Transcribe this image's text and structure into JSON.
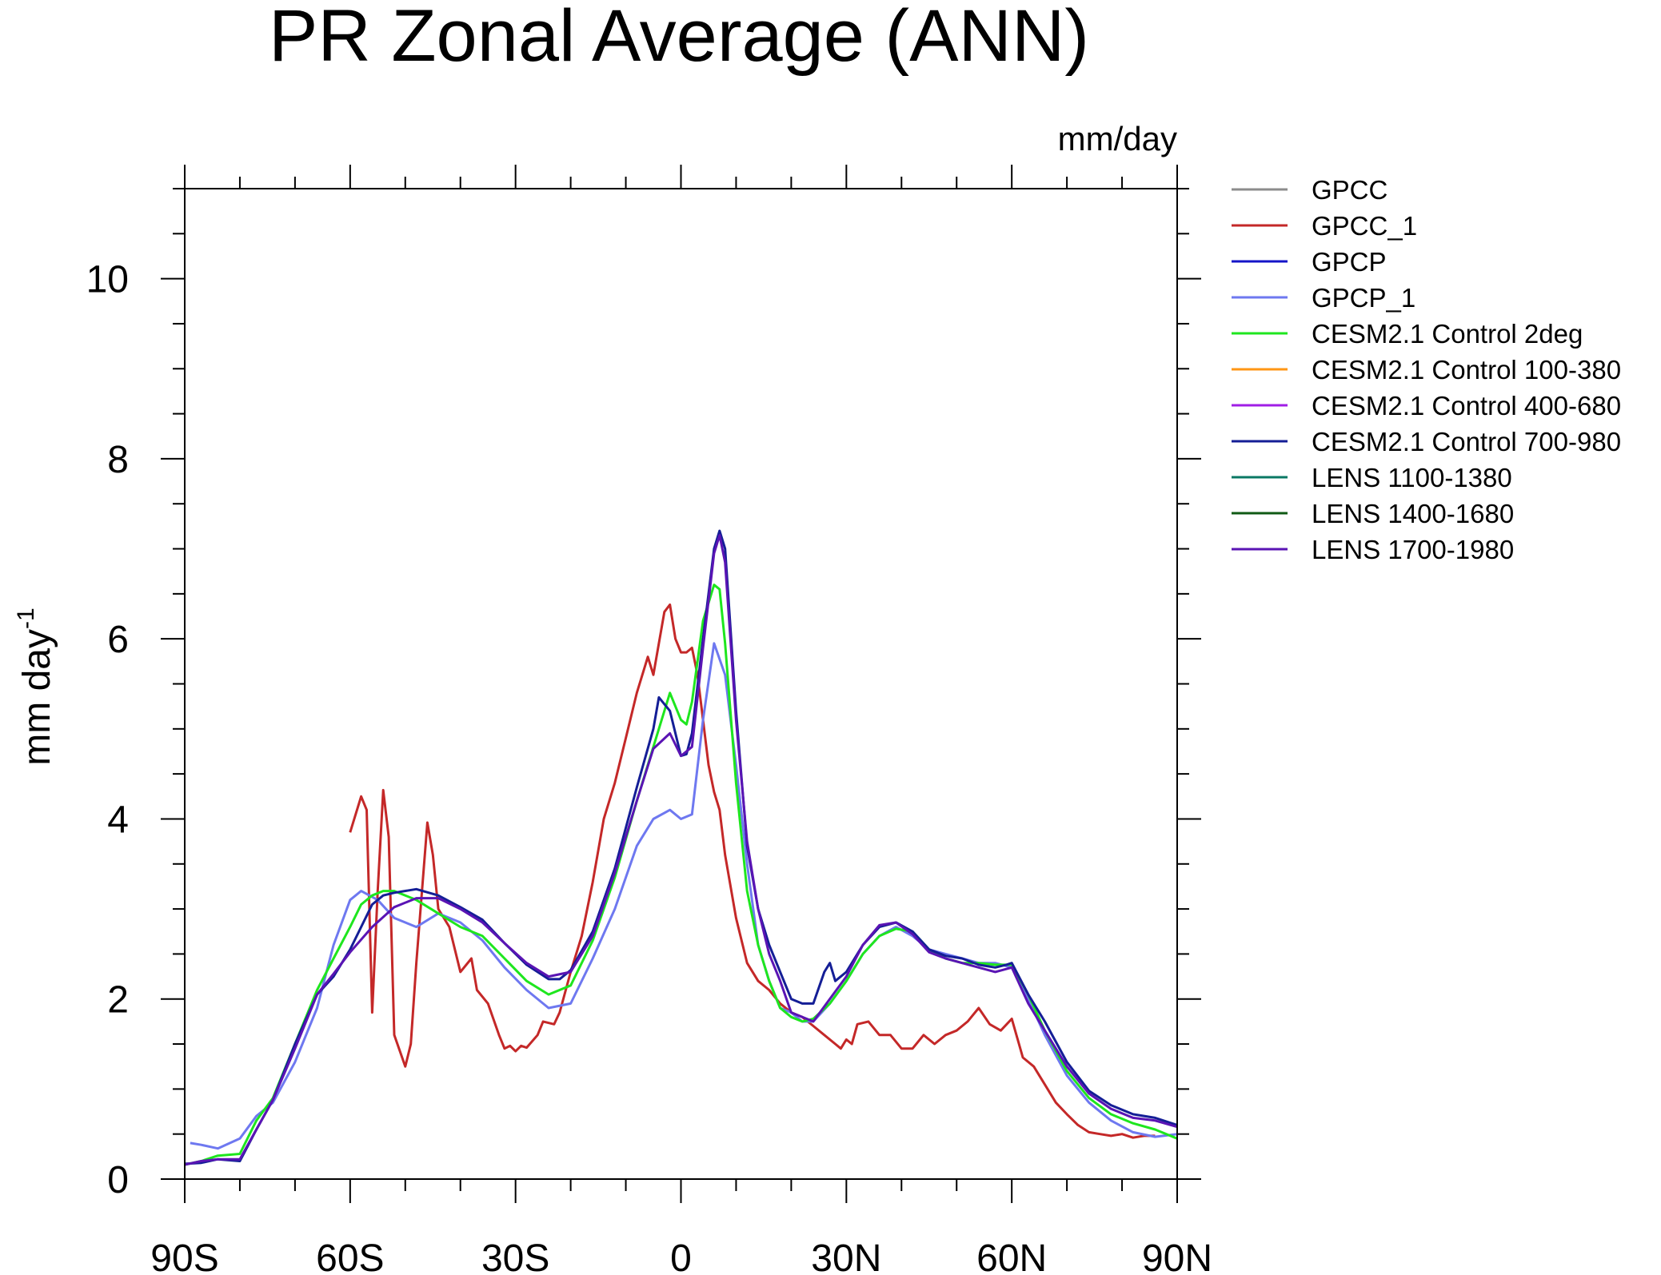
{
  "chart_data": {
    "type": "line",
    "title": "PR Zonal Average (ANN)",
    "units": "mm/day",
    "ylabel": "mm day",
    "ylabel_superscript": "-1",
    "xlabel": "",
    "xlim": [
      -90,
      90
    ],
    "ylim": [
      0,
      11
    ],
    "xticks": [
      {
        "value": -90,
        "label": "90S"
      },
      {
        "value": -60,
        "label": "60S"
      },
      {
        "value": -30,
        "label": "30S"
      },
      {
        "value": 0,
        "label": "0"
      },
      {
        "value": 30,
        "label": "30N"
      },
      {
        "value": 60,
        "label": "60N"
      },
      {
        "value": 90,
        "label": "90N"
      }
    ],
    "yticks": [
      {
        "value": 0,
        "label": "0"
      },
      {
        "value": 2,
        "label": "2"
      },
      {
        "value": 4,
        "label": "4"
      },
      {
        "value": 6,
        "label": "6"
      },
      {
        "value": 8,
        "label": "8"
      },
      {
        "value": 10,
        "label": "10"
      }
    ],
    "legend_position": "right",
    "series": [
      {
        "name": "GPCC",
        "color": "#8c8c8c",
        "width": 3,
        "x": [],
        "y": []
      },
      {
        "name": "GPCC_1",
        "color": "#c42828",
        "width": 3,
        "x": [
          -60,
          -58,
          -57,
          -56,
          -55,
          -54,
          -53,
          -52,
          -50,
          -49,
          -48,
          -46,
          -45,
          -44,
          -42,
          -40,
          -38,
          -37,
          -35,
          -33,
          -32,
          -31,
          -30,
          -29,
          -28,
          -26,
          -25,
          -23,
          -22,
          -20,
          -18,
          -16,
          -14,
          -12,
          -10,
          -8,
          -6,
          -5,
          -4,
          -3,
          -2,
          -1,
          0,
          1,
          2,
          3,
          4,
          5,
          6,
          7,
          8,
          10,
          12,
          14,
          16,
          18,
          20,
          22,
          24,
          26,
          28,
          29,
          30,
          31,
          32,
          34,
          36,
          38,
          40,
          42,
          44,
          46,
          48,
          50,
          52,
          54,
          56,
          58,
          60,
          62,
          64,
          66,
          68,
          70,
          72,
          74,
          76,
          78,
          80,
          82,
          84,
          86
        ],
        "y": [
          3.85,
          4.25,
          4.1,
          1.85,
          3.2,
          4.32,
          3.8,
          1.6,
          1.25,
          1.5,
          2.4,
          3.96,
          3.6,
          3.0,
          2.8,
          2.3,
          2.45,
          2.1,
          1.95,
          1.6,
          1.45,
          1.48,
          1.42,
          1.48,
          1.46,
          1.6,
          1.75,
          1.72,
          1.85,
          2.3,
          2.7,
          3.3,
          4.0,
          4.4,
          4.9,
          5.4,
          5.8,
          5.6,
          5.95,
          6.3,
          6.38,
          6.0,
          5.85,
          5.85,
          5.9,
          5.6,
          5.1,
          4.6,
          4.3,
          4.1,
          3.6,
          2.9,
          2.4,
          2.2,
          2.1,
          1.95,
          1.85,
          1.8,
          1.7,
          1.6,
          1.5,
          1.45,
          1.55,
          1.5,
          1.72,
          1.75,
          1.6,
          1.6,
          1.45,
          1.45,
          1.6,
          1.5,
          1.6,
          1.65,
          1.75,
          1.9,
          1.72,
          1.65,
          1.78,
          1.35,
          1.25,
          1.05,
          0.85,
          0.72,
          0.6,
          0.52,
          0.5,
          0.48,
          0.5,
          0.46,
          0.48,
          0.48
        ]
      },
      {
        "name": "GPCP",
        "color": "#1414c8",
        "width": 3,
        "x": [],
        "y": []
      },
      {
        "name": "GPCP_1",
        "color": "#6e78f0",
        "width": 3,
        "x": [
          -89,
          -87,
          -84,
          -80,
          -77,
          -74,
          -70,
          -66,
          -63,
          -60,
          -58,
          -55,
          -52,
          -48,
          -44,
          -40,
          -36,
          -32,
          -28,
          -24,
          -20,
          -16,
          -12,
          -8,
          -5,
          -2,
          0,
          2,
          4,
          6,
          8,
          10,
          12,
          14,
          16,
          18,
          20,
          22,
          24,
          27,
          30,
          33,
          36,
          39,
          42,
          45,
          48,
          51,
          54,
          57,
          60,
          63,
          66,
          70,
          74,
          78,
          82,
          86,
          90
        ],
        "y": [
          0.4,
          0.38,
          0.34,
          0.45,
          0.7,
          0.85,
          1.3,
          1.9,
          2.6,
          3.1,
          3.2,
          3.1,
          2.9,
          2.8,
          2.95,
          2.85,
          2.65,
          2.35,
          2.1,
          1.9,
          1.95,
          2.45,
          3.0,
          3.7,
          4.0,
          4.1,
          4.0,
          4.05,
          5.1,
          5.95,
          5.6,
          4.6,
          3.5,
          2.6,
          2.2,
          1.9,
          1.85,
          1.75,
          1.75,
          1.95,
          2.2,
          2.5,
          2.7,
          2.8,
          2.7,
          2.55,
          2.5,
          2.45,
          2.4,
          2.4,
          2.35,
          2.0,
          1.6,
          1.15,
          0.85,
          0.65,
          0.52,
          0.47,
          0.5
        ]
      },
      {
        "name": "CESM2.1 Control 2deg",
        "color": "#1ee61e",
        "width": 3,
        "x": [
          -90,
          -87,
          -84,
          -80,
          -77,
          -74,
          -70,
          -66,
          -63,
          -60,
          -58,
          -56,
          -54,
          -52,
          -48,
          -44,
          -40,
          -36,
          -32,
          -28,
          -24,
          -20,
          -16,
          -12,
          -8,
          -5,
          -2,
          0,
          1,
          2,
          4,
          6,
          7,
          8,
          10,
          12,
          14,
          16,
          18,
          20,
          22,
          24,
          27,
          30,
          33,
          36,
          39,
          42,
          45,
          48,
          51,
          54,
          57,
          60,
          63,
          66,
          70,
          74,
          78,
          82,
          86,
          90
        ],
        "y": [
          0.16,
          0.2,
          0.26,
          0.28,
          0.65,
          0.9,
          1.5,
          2.1,
          2.45,
          2.8,
          3.05,
          3.15,
          3.2,
          3.2,
          3.1,
          2.95,
          2.8,
          2.7,
          2.45,
          2.2,
          2.05,
          2.15,
          2.65,
          3.35,
          4.2,
          4.8,
          5.4,
          5.1,
          5.05,
          5.3,
          6.2,
          6.6,
          6.55,
          5.95,
          4.4,
          3.2,
          2.6,
          2.2,
          1.9,
          1.8,
          1.75,
          1.78,
          1.95,
          2.2,
          2.5,
          2.7,
          2.78,
          2.75,
          2.55,
          2.45,
          2.4,
          2.4,
          2.38,
          2.38,
          2.05,
          1.65,
          1.2,
          0.9,
          0.72,
          0.62,
          0.55,
          0.45
        ]
      },
      {
        "name": "CESM2.1 Control 100-380",
        "color": "#ff9614",
        "width": 3,
        "x": [],
        "y": []
      },
      {
        "name": "CESM2.1 Control 400-680",
        "color": "#a01ee6",
        "width": 3,
        "x": [],
        "y": []
      },
      {
        "name": "CESM2.1 Control 700-980",
        "color": "#141e96",
        "width": 3,
        "x": [
          -90,
          -87,
          -84,
          -80,
          -77,
          -74,
          -70,
          -66,
          -63,
          -60,
          -58,
          -56,
          -54,
          -52,
          -48,
          -44,
          -40,
          -36,
          -32,
          -28,
          -24,
          -22,
          -20,
          -16,
          -12,
          -8,
          -5,
          -4,
          -2,
          0,
          1,
          2,
          4,
          6,
          7,
          8,
          10,
          12,
          14,
          16,
          18,
          20,
          22,
          24,
          26,
          27,
          28,
          29,
          30,
          33,
          36,
          39,
          42,
          45,
          48,
          51,
          54,
          57,
          59,
          60,
          63,
          66,
          70,
          74,
          78,
          82,
          86,
          90
        ],
        "y": [
          0.17,
          0.18,
          0.22,
          0.2,
          0.55,
          0.88,
          1.5,
          2.05,
          2.25,
          2.55,
          2.8,
          3.05,
          3.15,
          3.18,
          3.22,
          3.15,
          3.02,
          2.88,
          2.62,
          2.38,
          2.22,
          2.22,
          2.32,
          2.75,
          3.45,
          4.35,
          5.0,
          5.35,
          5.2,
          4.7,
          4.72,
          4.95,
          6.0,
          7.0,
          7.2,
          7.0,
          5.2,
          3.7,
          3.0,
          2.6,
          2.3,
          2.0,
          1.95,
          1.95,
          2.3,
          2.4,
          2.2,
          2.25,
          2.3,
          2.6,
          2.8,
          2.85,
          2.75,
          2.55,
          2.48,
          2.45,
          2.38,
          2.35,
          2.38,
          2.4,
          2.05,
          1.75,
          1.3,
          0.98,
          0.82,
          0.72,
          0.68,
          0.6
        ]
      },
      {
        "name": "LENS 1100-1380",
        "color": "#0a7864",
        "width": 3,
        "x": [],
        "y": []
      },
      {
        "name": "LENS 1400-1680",
        "color": "#0f5a14",
        "width": 3,
        "x": [],
        "y": []
      },
      {
        "name": "LENS 1700-1980",
        "color": "#5a14b4",
        "width": 3,
        "x": [
          -90,
          -87,
          -84,
          -80,
          -77,
          -74,
          -70,
          -66,
          -63,
          -60,
          -56,
          -52,
          -48,
          -44,
          -40,
          -36,
          -32,
          -28,
          -24,
          -20,
          -16,
          -12,
          -8,
          -5,
          -2,
          0,
          2,
          4,
          6,
          7,
          8,
          10,
          12,
          14,
          16,
          18,
          20,
          22,
          24,
          27,
          30,
          33,
          36,
          39,
          42,
          45,
          48,
          51,
          54,
          57,
          60,
          63,
          66,
          70,
          74,
          78,
          82,
          86,
          90
        ],
        "y": [
          0.16,
          0.2,
          0.22,
          0.22,
          0.55,
          0.88,
          1.45,
          2.05,
          2.28,
          2.52,
          2.8,
          3.02,
          3.12,
          3.12,
          3.0,
          2.85,
          2.62,
          2.4,
          2.25,
          2.3,
          2.7,
          3.4,
          4.2,
          4.78,
          4.95,
          4.7,
          4.8,
          5.9,
          6.95,
          7.15,
          6.85,
          5.1,
          3.75,
          3.0,
          2.5,
          2.2,
          1.85,
          1.8,
          1.75,
          2.0,
          2.25,
          2.6,
          2.82,
          2.85,
          2.72,
          2.52,
          2.45,
          2.4,
          2.35,
          2.3,
          2.35,
          1.95,
          1.65,
          1.25,
          0.95,
          0.78,
          0.68,
          0.65,
          0.58
        ]
      }
    ]
  }
}
